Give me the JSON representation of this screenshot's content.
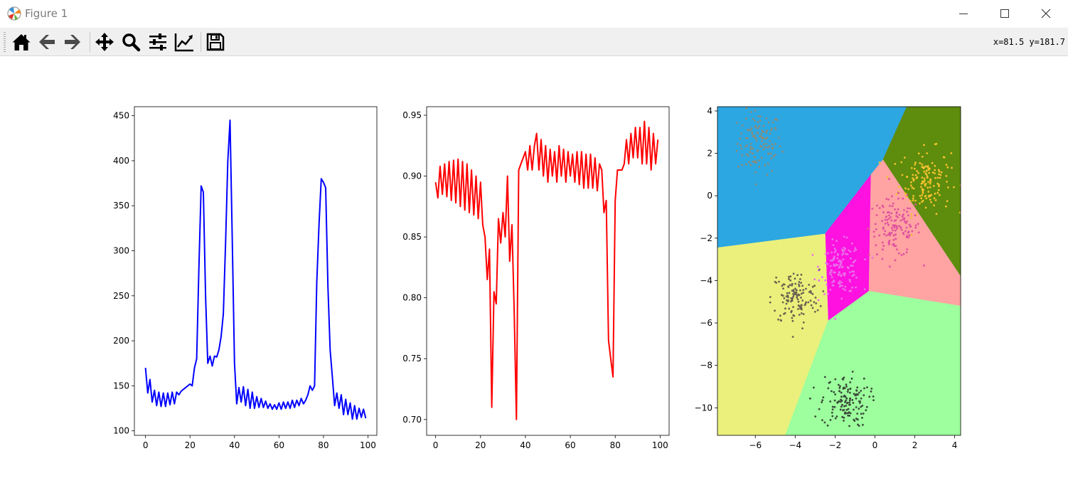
{
  "window": {
    "title": "Figure 1",
    "controls": [
      "minimize",
      "maximize",
      "close"
    ]
  },
  "toolbar": {
    "buttons": [
      {
        "name": "home",
        "icon": "home-icon"
      },
      {
        "name": "back",
        "icon": "arrow-left-icon"
      },
      {
        "name": "forward",
        "icon": "arrow-right-icon"
      },
      {
        "name": "pan",
        "icon": "move-icon"
      },
      {
        "name": "zoom",
        "icon": "magnifier-icon"
      },
      {
        "name": "subplots",
        "icon": "sliders-icon"
      },
      {
        "name": "edit-axes",
        "icon": "line-chart-icon"
      },
      {
        "name": "save",
        "icon": "floppy-icon"
      }
    ],
    "coordinates": "x=81.5 y=181.7"
  },
  "chart_data": [
    {
      "type": "line",
      "color": "#0000ff",
      "xlim": [
        -5,
        104
      ],
      "ylim": [
        95,
        460
      ],
      "xticks": [
        0,
        20,
        40,
        60,
        80,
        100
      ],
      "yticks": [
        100,
        150,
        200,
        250,
        300,
        350,
        400,
        450
      ],
      "x": [
        0,
        1,
        2,
        3,
        4,
        5,
        6,
        7,
        8,
        9,
        10,
        11,
        12,
        13,
        14,
        15,
        16,
        17,
        18,
        19,
        20,
        21,
        22,
        23,
        24,
        25,
        26,
        27,
        28,
        29,
        30,
        31,
        32,
        33,
        34,
        35,
        36,
        37,
        38,
        39,
        40,
        41,
        42,
        43,
        44,
        45,
        46,
        47,
        48,
        49,
        50,
        51,
        52,
        53,
        54,
        55,
        56,
        57,
        58,
        59,
        60,
        61,
        62,
        63,
        64,
        65,
        66,
        67,
        68,
        69,
        70,
        71,
        72,
        73,
        74,
        75,
        76,
        77,
        78,
        79,
        80,
        81,
        82,
        83,
        84,
        85,
        86,
        87,
        88,
        89,
        90,
        91,
        92,
        93,
        94,
        95,
        96,
        97,
        98,
        99
      ],
      "y": [
        170,
        142,
        157,
        132,
        145,
        128,
        143,
        127,
        142,
        127,
        142,
        129,
        143,
        130,
        143,
        140,
        144,
        146,
        148,
        150,
        152,
        150,
        170,
        180,
        280,
        372,
        365,
        250,
        175,
        183,
        172,
        183,
        182,
        190,
        205,
        230,
        310,
        400,
        445,
        310,
        175,
        130,
        148,
        132,
        149,
        128,
        146,
        125,
        143,
        125,
        138,
        126,
        136,
        126,
        133,
        125,
        130,
        124,
        129,
        124,
        131,
        124,
        132,
        125,
        132,
        125,
        134,
        126,
        134,
        128,
        136,
        130,
        134,
        140,
        150,
        145,
        150,
        265,
        330,
        380,
        376,
        370,
        260,
        190,
        160,
        128,
        142,
        125,
        140,
        118,
        135,
        118,
        131,
        113,
        128,
        113,
        125,
        115,
        124,
        114
      ]
    },
    {
      "type": "line",
      "color": "#ff0000",
      "xlim": [
        -4,
        104
      ],
      "ylim": [
        0.687,
        0.957
      ],
      "xticks": [
        0,
        20,
        40,
        60,
        80,
        100
      ],
      "yticks": [
        0.7,
        0.75,
        0.8,
        0.85,
        0.9,
        0.95
      ],
      "yticklabels": [
        "0.70",
        "0.75",
        "0.80",
        "0.85",
        "0.90",
        "0.95"
      ],
      "x": [
        0,
        1,
        2,
        3,
        4,
        5,
        6,
        7,
        8,
        9,
        10,
        11,
        12,
        13,
        14,
        15,
        16,
        17,
        18,
        19,
        20,
        21,
        22,
        23,
        24,
        25,
        26,
        27,
        28,
        29,
        30,
        31,
        32,
        33,
        34,
        35,
        36,
        37,
        38,
        39,
        40,
        41,
        42,
        43,
        44,
        45,
        46,
        47,
        48,
        49,
        50,
        51,
        52,
        53,
        54,
        55,
        56,
        57,
        58,
        59,
        60,
        61,
        62,
        63,
        64,
        65,
        66,
        67,
        68,
        69,
        70,
        71,
        72,
        73,
        74,
        75,
        76,
        77,
        78,
        79,
        80,
        81,
        82,
        83,
        84,
        85,
        86,
        87,
        88,
        89,
        90,
        91,
        92,
        93,
        94,
        95,
        96,
        97,
        98,
        99
      ],
      "y": [
        0.895,
        0.882,
        0.908,
        0.885,
        0.91,
        0.883,
        0.912,
        0.88,
        0.913,
        0.878,
        0.914,
        0.875,
        0.912,
        0.872,
        0.91,
        0.87,
        0.905,
        0.868,
        0.9,
        0.865,
        0.895,
        0.86,
        0.85,
        0.815,
        0.84,
        0.71,
        0.805,
        0.795,
        0.865,
        0.845,
        0.87,
        0.85,
        0.9,
        0.83,
        0.86,
        0.79,
        0.7,
        0.905,
        0.91,
        0.915,
        0.92,
        0.905,
        0.925,
        0.905,
        0.925,
        0.935,
        0.905,
        0.93,
        0.9,
        0.925,
        0.895,
        0.922,
        0.9,
        0.92,
        0.895,
        0.925,
        0.9,
        0.922,
        0.895,
        0.92,
        0.9,
        0.918,
        0.895,
        0.92,
        0.893,
        0.92,
        0.89,
        0.918,
        0.89,
        0.918,
        0.89,
        0.915,
        0.888,
        0.91,
        0.905,
        0.87,
        0.88,
        0.765,
        0.75,
        0.735,
        0.88,
        0.905,
        0.905,
        0.905,
        0.91,
        0.93,
        0.91,
        0.935,
        0.915,
        0.94,
        0.915,
        0.94,
        0.91,
        0.945,
        0.91,
        0.94,
        0.905,
        0.935,
        0.91,
        0.93
      ]
    },
    {
      "type": "scatter",
      "xlim": [
        -7.9,
        4.3
      ],
      "ylim": [
        -11.3,
        4.2
      ],
      "xticks": [
        -6,
        -4,
        -2,
        0,
        2,
        4
      ],
      "yticks": [
        -10,
        -8,
        -6,
        -4,
        -2,
        0,
        2,
        4
      ],
      "regions": [
        {
          "color": "#2ca7e2",
          "points": [
            [
              -7.9,
              4.2
            ],
            [
              1.6,
              4.2
            ],
            [
              0.4,
              1.7
            ],
            [
              -0.2,
              1.0
            ],
            [
              -2.5,
              -1.8
            ],
            [
              -7.9,
              -2.45
            ]
          ]
        },
        {
          "color": "#5e8c0c",
          "points": [
            [
              1.6,
              4.2
            ],
            [
              4.3,
              4.2
            ],
            [
              4.3,
              -3.8
            ],
            [
              0.4,
              1.7
            ]
          ]
        },
        {
          "color": "#ff11e0",
          "points": [
            [
              -0.2,
              1.0
            ],
            [
              -0.3,
              -4.5
            ],
            [
              -2.35,
              -5.9
            ],
            [
              -2.5,
              -1.8
            ]
          ]
        },
        {
          "color": "#ffa3a3",
          "points": [
            [
              0.4,
              1.7
            ],
            [
              4.3,
              -3.8
            ],
            [
              4.3,
              -5.2
            ],
            [
              -0.3,
              -4.5
            ],
            [
              -0.2,
              1.0
            ]
          ]
        },
        {
          "color": "#eaf07b",
          "points": [
            [
              -7.9,
              -2.45
            ],
            [
              -2.5,
              -1.8
            ],
            [
              -2.35,
              -5.9
            ],
            [
              -4.5,
              -11.3
            ],
            [
              -7.9,
              -11.3
            ]
          ]
        },
        {
          "color": "#9dff9d",
          "points": [
            [
              -2.35,
              -5.9
            ],
            [
              -0.3,
              -4.5
            ],
            [
              4.3,
              -5.2
            ],
            [
              4.3,
              -11.3
            ],
            [
              -4.5,
              -11.3
            ]
          ]
        }
      ],
      "clusters": [
        {
          "center": [
            -5.8,
            2.5
          ],
          "spread": [
            0.55,
            0.75
          ],
          "count": 120,
          "color": "#8c8c7a"
        },
        {
          "center": [
            2.5,
            0.7
          ],
          "spread": [
            0.65,
            0.75
          ],
          "count": 150,
          "color": "#f2c12e"
        },
        {
          "center": [
            1.0,
            -1.5
          ],
          "spread": [
            0.65,
            0.7
          ],
          "count": 140,
          "color": "#e0509e"
        },
        {
          "center": [
            -1.7,
            -3.4
          ],
          "spread": [
            0.5,
            0.6
          ],
          "count": 130,
          "color": "#e970e9"
        },
        {
          "center": [
            -4.0,
            -4.8
          ],
          "spread": [
            0.6,
            0.65
          ],
          "count": 130,
          "color": "#6b6150"
        },
        {
          "center": [
            -1.5,
            -9.7
          ],
          "spread": [
            0.6,
            0.6
          ],
          "count": 140,
          "color": "#3a4a3a"
        }
      ]
    }
  ]
}
